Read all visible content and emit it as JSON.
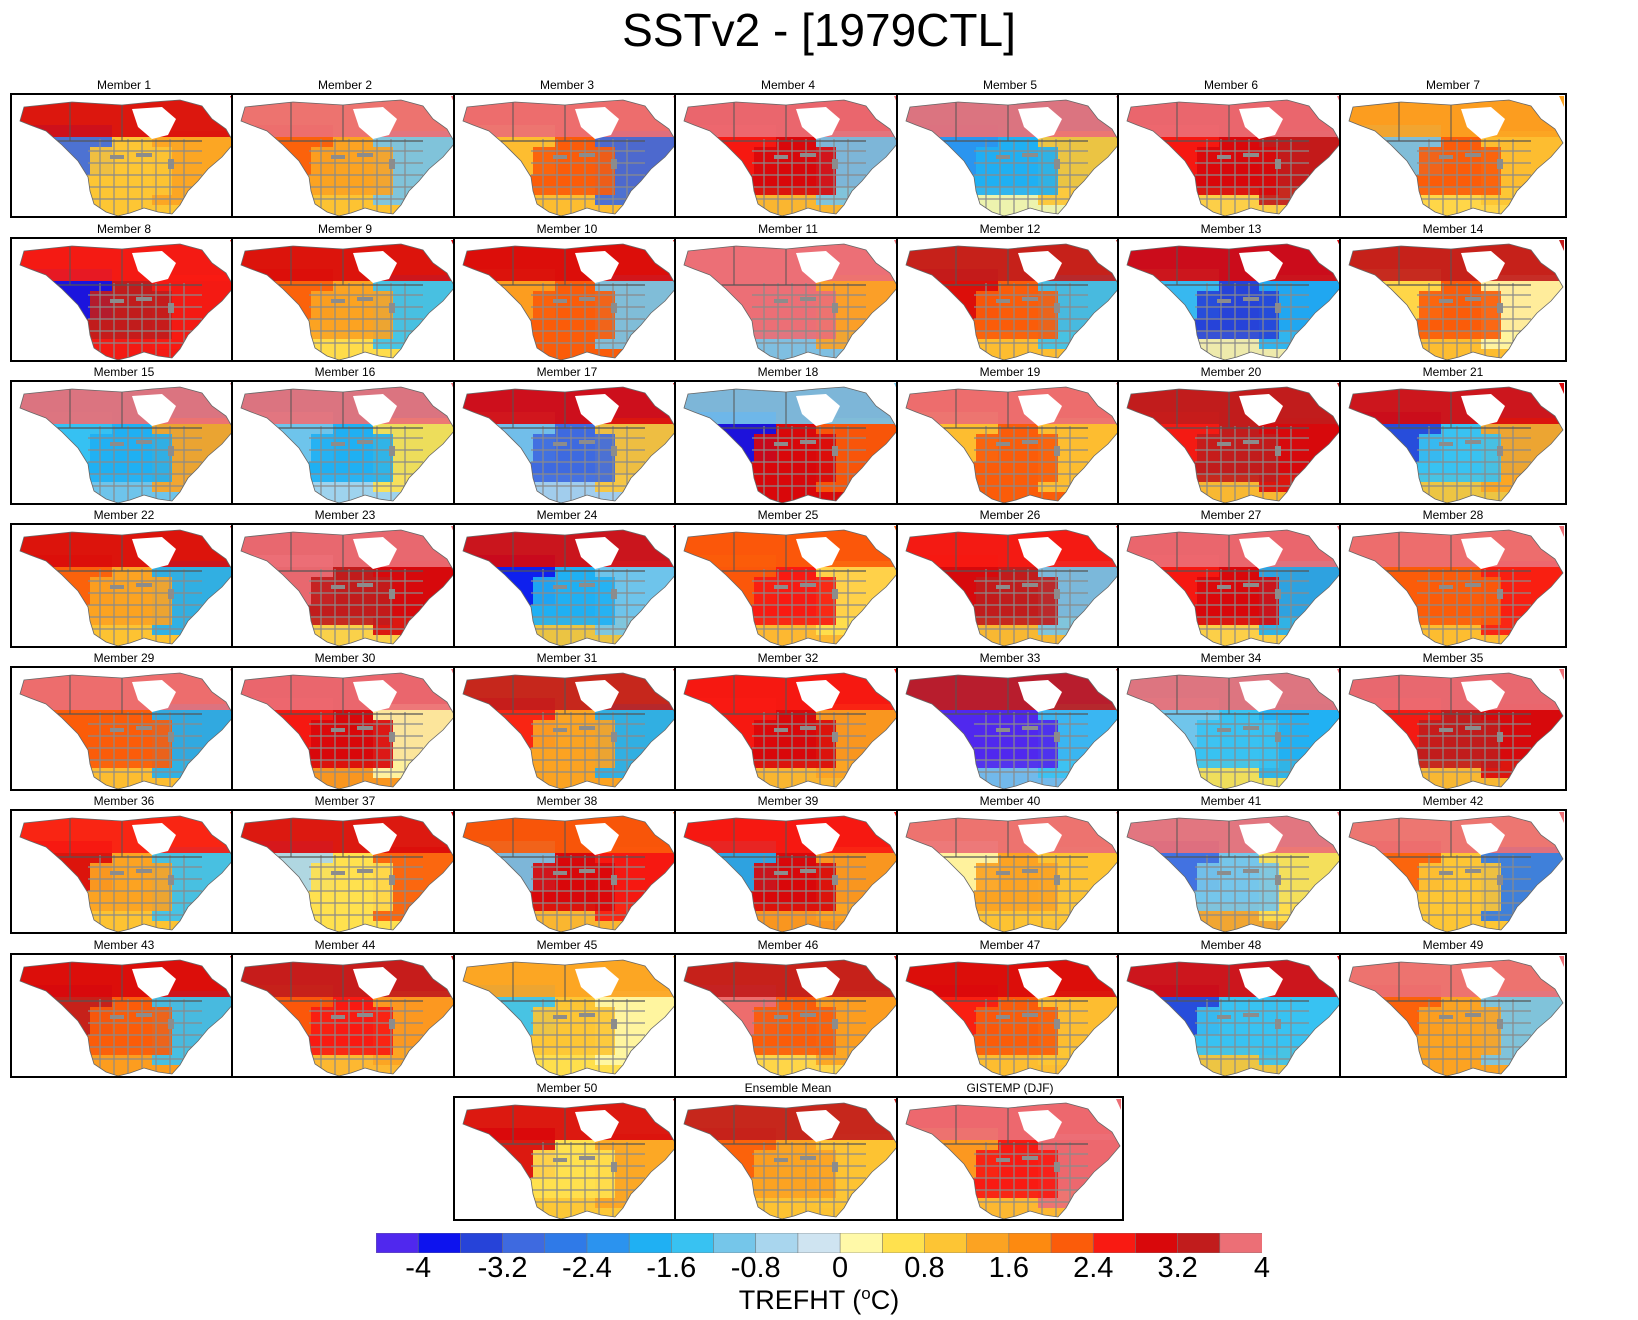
{
  "title": "SSTv2 - [1979CTL]",
  "panel_labels": [
    "Member 1",
    "Member 2",
    "Member 3",
    "Member 4",
    "Member 5",
    "Member 6",
    "Member 7",
    "Member 8",
    "Member 9",
    "Member 10",
    "Member 11",
    "Member 12",
    "Member 13",
    "Member 14",
    "Member 15",
    "Member 16",
    "Member 17",
    "Member 18",
    "Member 19",
    "Member 20",
    "Member 21",
    "Member 22",
    "Member 23",
    "Member 24",
    "Member 25",
    "Member 26",
    "Member 27",
    "Member 28",
    "Member 29",
    "Member 30",
    "Member 31",
    "Member 32",
    "Member 33",
    "Member 34",
    "Member 35",
    "Member 36",
    "Member 37",
    "Member 38",
    "Member 39",
    "Member 40",
    "Member 41",
    "Member 42",
    "Member 43",
    "Member 44",
    "Member 45",
    "Member 46",
    "Member 47",
    "Member 48",
    "Member 49",
    "Member 50",
    "Ensemble Mean",
    "GISTEMP (DJF)"
  ],
  "panel_anomaly_pattern": [
    {
      "north": 3.2,
      "west": -2.8,
      "central": 1.2,
      "east": 1.6,
      "south": 1.2
    },
    {
      "north": 4.4,
      "west": 2.4,
      "central": 1.6,
      "east": -0.8,
      "south": 1.2
    },
    {
      "north": 4.4,
      "west": 1.2,
      "central": 2.4,
      "east": -2.8,
      "south": 1.2
    },
    {
      "north": 4.4,
      "west": 2.8,
      "central": 3.2,
      "east": -0.8,
      "south": 1.2
    },
    {
      "north": 4.4,
      "west": -2.0,
      "central": -1.6,
      "east": 1.2,
      "south": 0.4
    },
    {
      "north": 4.4,
      "west": 2.8,
      "central": 3.2,
      "east": 3.6,
      "south": 0.8
    },
    {
      "north": 1.6,
      "west": -0.8,
      "central": 2.4,
      "east": 1.2,
      "south": 0.8
    },
    {
      "north": 2.8,
      "west": -3.6,
      "central": 3.6,
      "east": 2.8,
      "south": 2.8
    },
    {
      "north": 3.2,
      "west": 2.4,
      "central": 1.6,
      "east": -1.2,
      "south": 0.8
    },
    {
      "north": 3.2,
      "west": 1.6,
      "central": 2.4,
      "east": -0.8,
      "south": 2.4
    },
    {
      "north": 4.4,
      "west": 4.4,
      "central": 4.4,
      "east": 1.6,
      "south": -0.8
    },
    {
      "north": 3.6,
      "west": 3.2,
      "central": 2.4,
      "east": -1.2,
      "south": 1.2
    },
    {
      "north": 3.2,
      "west": -1.2,
      "central": -3.2,
      "east": -1.6,
      "south": 0.4
    },
    {
      "north": 3.6,
      "west": 0.8,
      "central": 2.4,
      "east": 0.4,
      "south": 1.2
    },
    {
      "north": 4.4,
      "west": -1.2,
      "central": -1.6,
      "east": 1.6,
      "south": -0.8
    },
    {
      "north": 4.4,
      "west": -0.8,
      "central": -1.6,
      "east": 0.8,
      "south": -0.4
    },
    {
      "north": 3.2,
      "west": -0.8,
      "central": -2.8,
      "east": 1.2,
      "south": -0.4
    },
    {
      "north": -0.8,
      "west": -3.6,
      "central": 3.2,
      "east": 2.4,
      "south": 3.2
    },
    {
      "north": 4.4,
      "west": 1.2,
      "central": 2.4,
      "east": 1.2,
      "south": 2.4
    },
    {
      "north": 3.6,
      "west": 2.8,
      "central": 3.6,
      "east": 3.2,
      "south": 1.2
    },
    {
      "north": 3.2,
      "west": -3.2,
      "central": -1.2,
      "east": 1.6,
      "south": 1.2
    },
    {
      "north": 3.2,
      "west": 2.4,
      "central": 1.6,
      "east": -1.6,
      "south": 1.2
    },
    {
      "north": 4.4,
      "west": 4.4,
      "central": 3.6,
      "east": 3.2,
      "south": 0.8
    },
    {
      "north": 3.2,
      "west": -3.6,
      "central": -1.6,
      "east": -0.8,
      "south": 1.2
    },
    {
      "north": 2.4,
      "west": 2.4,
      "central": 2.8,
      "east": 0.8,
      "south": 1.2
    },
    {
      "north": 2.8,
      "west": 3.2,
      "central": 3.6,
      "east": -0.8,
      "south": 1.2
    },
    {
      "north": 4.4,
      "west": 2.8,
      "central": 3.2,
      "east": -1.6,
      "south": 0.8
    },
    {
      "north": 4.4,
      "west": 2.4,
      "central": 2.4,
      "east": 2.8,
      "south": 1.2
    },
    {
      "north": 4.4,
      "west": 2.4,
      "central": 2.4,
      "east": -1.6,
      "south": 1.2
    },
    {
      "north": 4.4,
      "west": 2.8,
      "central": 3.2,
      "east": 0.4,
      "south": 1.6
    },
    {
      "north": 3.6,
      "west": 2.8,
      "central": 1.6,
      "east": -1.6,
      "south": 1.6
    },
    {
      "north": 2.8,
      "west": 2.8,
      "central": 3.2,
      "east": 1.6,
      "south": 1.2
    },
    {
      "north": 3.6,
      "west": -4.4,
      "central": -4.4,
      "east": -1.2,
      "south": -0.8
    },
    {
      "north": 4.4,
      "west": -0.8,
      "central": -1.2,
      "east": -1.6,
      "south": 0.8
    },
    {
      "north": 4.4,
      "west": 2.8,
      "central": 3.6,
      "east": 3.2,
      "south": 1.2
    },
    {
      "north": 2.8,
      "west": 3.2,
      "central": 1.6,
      "east": -1.2,
      "south": 1.2
    },
    {
      "north": 3.2,
      "west": -0.4,
      "central": 0.8,
      "east": 2.4,
      "south": 0.8
    },
    {
      "north": 2.4,
      "west": -0.8,
      "central": 3.2,
      "east": 2.8,
      "south": 1.2
    },
    {
      "north": 2.8,
      "west": -1.6,
      "central": 3.2,
      "east": 1.6,
      "south": 1.6
    },
    {
      "north": 4.4,
      "west": 0.4,
      "central": 1.6,
      "east": 1.2,
      "south": 1.2
    },
    {
      "north": 4.4,
      "west": -2.8,
      "central": -0.8,
      "east": 0.8,
      "south": 1.6
    },
    {
      "north": 4.4,
      "west": 2.4,
      "central": 1.2,
      "east": -2.4,
      "south": 1.2
    },
    {
      "north": 3.2,
      "west": 3.6,
      "central": 2.4,
      "east": -1.2,
      "south": 1.6
    },
    {
      "north": 3.6,
      "west": 2.4,
      "central": 2.8,
      "east": 1.6,
      "south": 1.2
    },
    {
      "north": 1.6,
      "west": -1.2,
      "central": 1.2,
      "east": 0.4,
      "south": 0.8
    },
    {
      "north": 3.6,
      "west": 4.4,
      "central": 2.4,
      "east": 1.6,
      "south": 0.8
    },
    {
      "north": 3.2,
      "west": 2.8,
      "central": 2.4,
      "east": 1.2,
      "south": 1.2
    },
    {
      "north": 3.2,
      "west": -3.2,
      "central": -1.2,
      "east": -1.2,
      "south": 1.2
    },
    {
      "north": 4.4,
      "west": 2.4,
      "central": 1.6,
      "east": -0.8,
      "south": 1.6
    },
    {
      "north": 3.2,
      "west": 3.2,
      "central": 0.8,
      "east": 1.6,
      "south": 1.2
    },
    {
      "north": 3.6,
      "west": 2.4,
      "central": 1.6,
      "east": 1.2,
      "south": 1.2
    },
    {
      "north": 4.4,
      "west": 1.6,
      "central": 2.8,
      "east": 4.4,
      "south": 1.2
    }
  ],
  "colorbar": {
    "levels": [
      -4.0,
      -3.6,
      -3.2,
      -2.8,
      -2.4,
      -2.0,
      -1.6,
      -1.2,
      -0.8,
      -0.4,
      0.0,
      0.4,
      0.8,
      1.2,
      1.6,
      2.0,
      2.4,
      2.8,
      3.2,
      3.6,
      4.0
    ],
    "colors": [
      "#5028ee",
      "#0d13ee",
      "#2643d9",
      "#3e6ae0",
      "#2f7ae8",
      "#2b93ef",
      "#1fb0f3",
      "#38c2f2",
      "#75c6ea",
      "#a9d6ee",
      "#cfe4f1",
      "#fff9a8",
      "#ffe14e",
      "#fdc534",
      "#fca322",
      "#fd8a10",
      "#fb5c0a",
      "#f91a12",
      "#d9080b",
      "#c11c1c",
      "#ec6f76"
    ],
    "tick_labels": [
      "-4",
      "-3.2",
      "-2.4",
      "-1.6",
      "-0.8",
      "0",
      "0.8",
      "1.6",
      "2.4",
      "3.2",
      "4"
    ],
    "label": "TREFHT (",
    "label_sup": "o",
    "label_unit": "C)"
  }
}
